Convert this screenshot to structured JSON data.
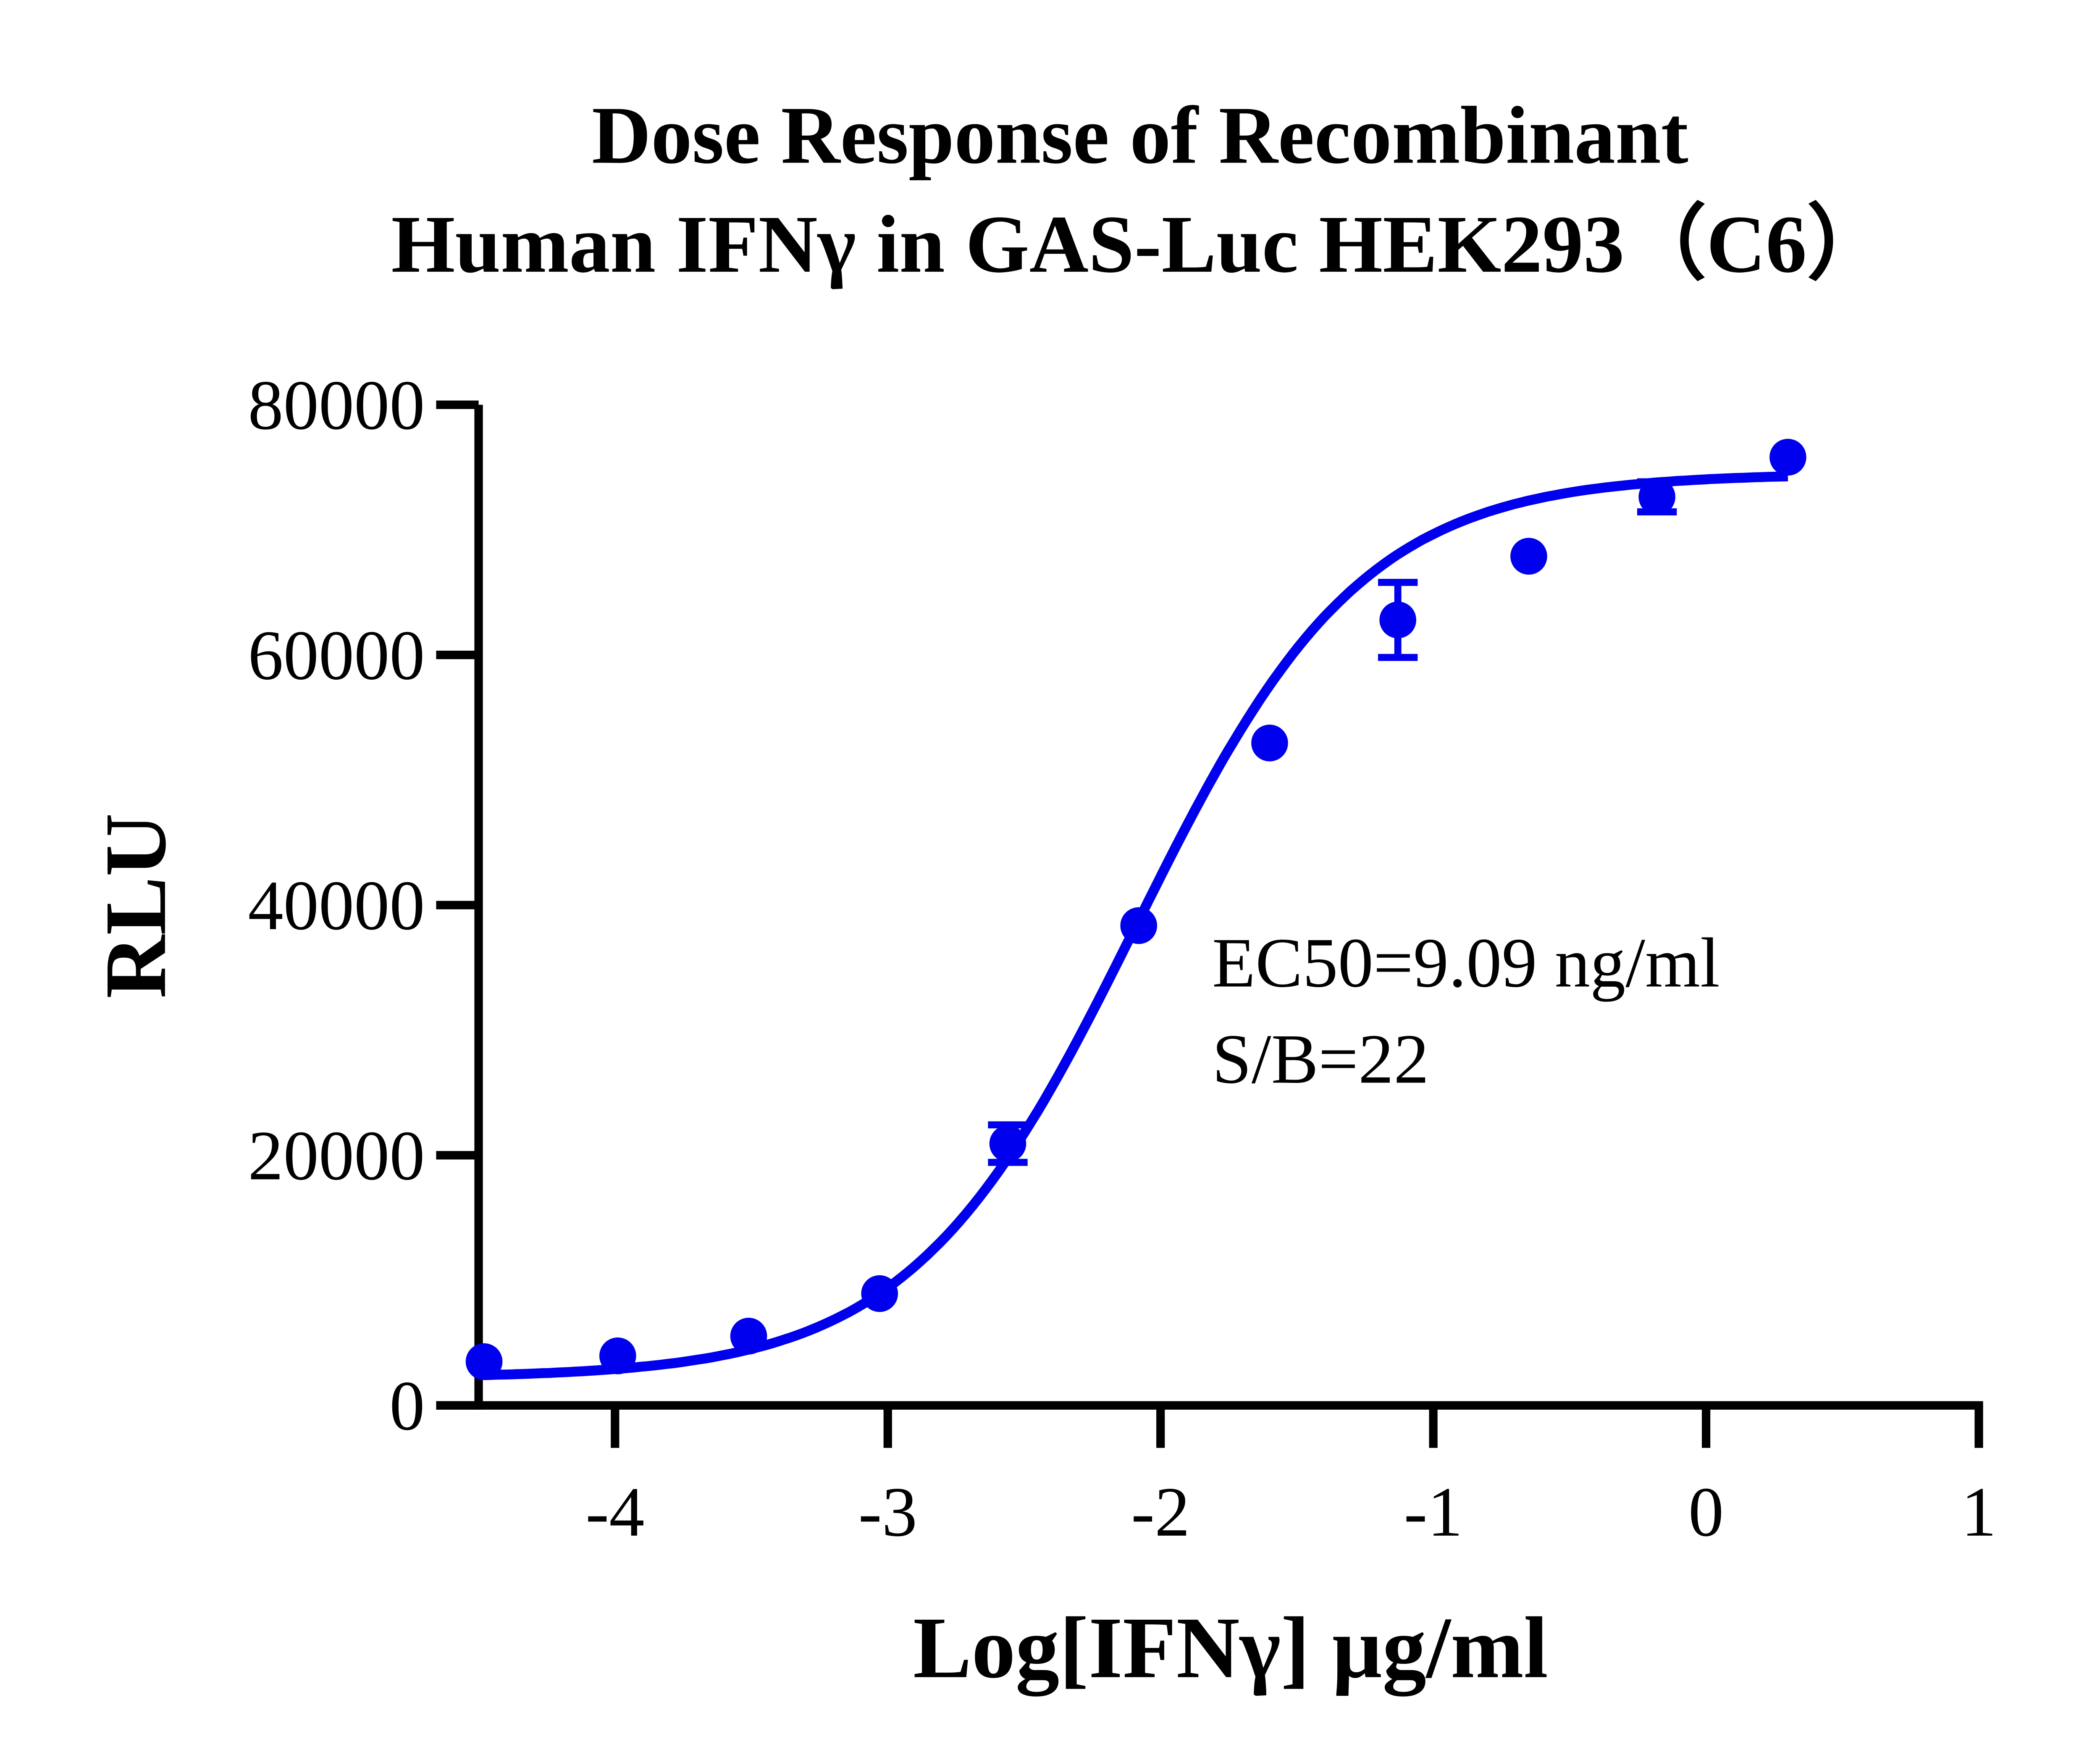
{
  "chart_data": {
    "type": "scatter",
    "title_lines": [
      "Dose Response of Recombinant",
      "Human IFNγ in GAS-Luc HEK293（C6）"
    ],
    "xlabel": "Log[IFNγ] µg/ml",
    "ylabel": "RLU",
    "xlim": [
      -4.5,
      1
    ],
    "ylim": [
      0,
      80000
    ],
    "xticks": [
      "-4",
      "-3",
      "-2",
      "-1",
      "0",
      "1"
    ],
    "xtick_values": [
      -4,
      -3,
      -2,
      -1,
      0,
      1
    ],
    "yticks": [
      "0",
      "20000",
      "40000",
      "60000",
      "80000"
    ],
    "ytick_values": [
      0,
      20000,
      40000,
      60000,
      80000
    ],
    "grid": false,
    "color": "#0000ee",
    "fit": "4-parameter logistic curve",
    "series": [
      {
        "x": [
          -4.48,
          -3.99,
          -3.51,
          -3.03,
          -2.56,
          -2.08,
          -1.6,
          -1.13,
          -0.65,
          -0.18,
          0.3
        ],
        "y": [
          3500,
          3960,
          5540,
          8940,
          20930,
          38360,
          52960,
          62800,
          67890,
          72640,
          75810
        ],
        "error": [
          0,
          0,
          0,
          0,
          1500,
          0,
          0,
          3000,
          0,
          1200,
          0
        ]
      }
    ],
    "annotations": [
      "EC50=9.09 ng/ml",
      "S/B=22"
    ]
  }
}
